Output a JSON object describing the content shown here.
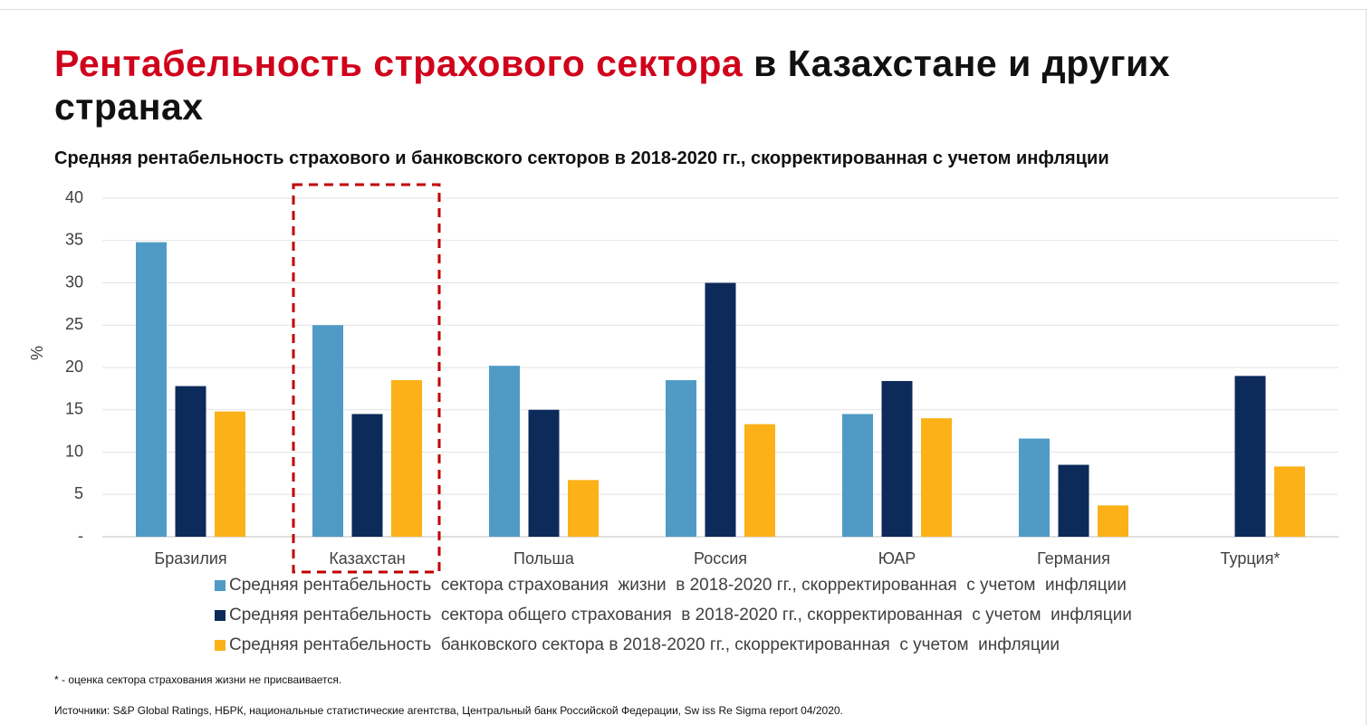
{
  "title_accent": "Рентабельность страхового сектора",
  "chart_data": {
    "type": "bar",
    "title": "в Казахстане и других странах",
    "subtitle": "Средняя рентабельность страхового и банковского секторов в 2018-2020 гг., скорректированная с учетом инфляции",
    "y_label": "%",
    "categories": [
      "Бразилия",
      "Казахстан",
      "Польша",
      "Россия",
      "ЮАР",
      "Германия",
      "Турция*"
    ],
    "series": [
      {
        "name": "Средняя рентабельность  сектора страхования  жизни  в 2018-2020 гг., скорректированная  с учетом  инфляции",
        "color": "#4f9bc6",
        "values": [
          34.8,
          25,
          20.2,
          18.5,
          14.5,
          11.6,
          null
        ]
      },
      {
        "name": "Средняя рентабельность  сектора общего страхования  в 2018-2020 гг., скорректированная  с учетом  инфляции",
        "color": "#0c2a5a",
        "values": [
          17.8,
          14.5,
          15,
          30,
          18.4,
          8.5,
          19
        ]
      },
      {
        "name": "Средняя рентабельность  банковского сектора в 2018-2020 гг., скорректированная  с учетом  инфляции",
        "color": "#fbb117",
        "values": [
          14.8,
          18.5,
          6.7,
          13.3,
          14,
          3.7,
          8.3
        ]
      }
    ],
    "ylim": [
      0,
      40
    ],
    "yticks": [
      {
        "value": 0,
        "label": "-"
      },
      5,
      10,
      15,
      20,
      25,
      30,
      35,
      40
    ],
    "grid": true,
    "highlight_index": 1,
    "highlight_color": "#c00000",
    "legend": "bottom"
  },
  "footnote": "* - оценка  сектора страхования жизни не присваивается.",
  "sources": "Источники: S&P Global Ratings,  НБРК,  национальные  статистические агентства, Центральный банк Российской Федерации,  Sw iss Re Sigma  report 04/2020."
}
